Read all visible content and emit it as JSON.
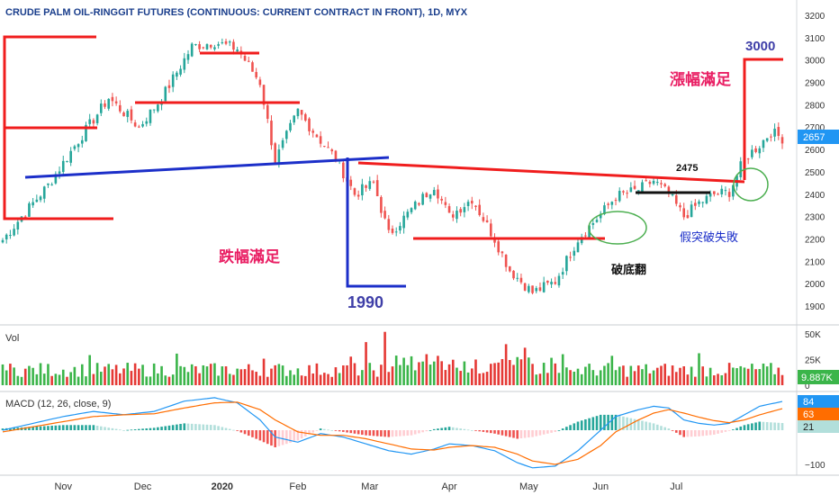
{
  "title": "CRUDE PALM OIL-RINGGIT FUTURES (CONTINUOUS: CURRENT CONTRACT IN FRONT), 1D, MYX",
  "colors": {
    "up": "#26a69a",
    "down": "#ef5350",
    "vol_up": "#3bb54a",
    "vol_down": "#e53935",
    "red_line": "#f01d1d",
    "blue_line": "#1c2fc9",
    "annot_purple": "#3f3fa8",
    "annot_pink": "#e91e63",
    "macd_line": "#2196f3",
    "signal_line": "#ff6d00",
    "price_badge": "#2196f3",
    "green_ellipse": "#4caf50"
  },
  "chart_data": [
    {
      "type": "candlestick",
      "panel": "price",
      "ylim": [
        1830,
        3260
      ],
      "yticks": [
        1900,
        2000,
        2100,
        2200,
        2300,
        2400,
        2500,
        2600,
        2700,
        2800,
        2900,
        3000,
        3100,
        3200
      ],
      "last_price_label": "2657",
      "last_price": 2657,
      "x_axis": {
        "labels": [
          "Nov",
          "Dec",
          "2020",
          "Feb",
          "Mar",
          "Apr",
          "May",
          "Jun",
          "Jul"
        ],
        "positions": [
          16,
          37,
          58,
          78,
          97,
          118,
          139,
          158,
          178
        ]
      },
      "close_path": [
        [
          0,
          2195
        ],
        [
          5,
          2300
        ],
        [
          12,
          2440
        ],
        [
          20,
          2640
        ],
        [
          28,
          2830
        ],
        [
          36,
          2700
        ],
        [
          42,
          2830
        ],
        [
          50,
          3060
        ],
        [
          56,
          3080
        ],
        [
          62,
          3050
        ],
        [
          68,
          2900
        ],
        [
          72,
          2550
        ],
        [
          78,
          2770
        ],
        [
          84,
          2640
        ],
        [
          88,
          2560
        ],
        [
          93,
          2400
        ],
        [
          98,
          2450
        ],
        [
          102,
          2220
        ],
        [
          108,
          2330
        ],
        [
          114,
          2440
        ],
        [
          118,
          2300
        ],
        [
          124,
          2380
        ],
        [
          130,
          2200
        ],
        [
          134,
          2060
        ],
        [
          140,
          1960
        ],
        [
          146,
          2010
        ],
        [
          152,
          2200
        ],
        [
          158,
          2310
        ],
        [
          162,
          2390
        ],
        [
          168,
          2420
        ],
        [
          172,
          2460
        ],
        [
          176,
          2400
        ],
        [
          180,
          2300
        ],
        [
          184,
          2360
        ],
        [
          188,
          2400
        ],
        [
          192,
          2410
        ],
        [
          196,
          2560
        ],
        [
          200,
          2620
        ],
        [
          203,
          2680
        ],
        [
          206,
          2650
        ]
      ],
      "annotations": [
        {
          "text": "跌幅滿足",
          "kind": "label"
        },
        {
          "text": "1990",
          "kind": "level"
        },
        {
          "text": "漲幅滿足",
          "kind": "label"
        },
        {
          "text": "3000",
          "kind": "level"
        },
        {
          "text": "2475",
          "kind": "level"
        },
        {
          "text": "假突破失敗",
          "kind": "label"
        },
        {
          "text": "破底翻",
          "kind": "label"
        }
      ]
    },
    {
      "type": "bar",
      "panel": "volume",
      "label": "Vol",
      "ylim": [
        0,
        55000
      ],
      "yticks_labels": [
        "50K",
        "25K",
        "0"
      ],
      "yticks": [
        50000,
        25000,
        0
      ],
      "last_value_label": "9.887K",
      "last_value": 9887
    },
    {
      "type": "line",
      "panel": "macd",
      "label": "MACD (12, 26, close, 9)",
      "ylim": [
        -130,
        110
      ],
      "yticks": [
        -100
      ],
      "yticks_labels": [
        "−100"
      ],
      "values": {
        "macd": 84,
        "signal": 63,
        "histogram": 21
      },
      "values_labels": {
        "macd": "84",
        "signal": "63",
        "histogram": "21"
      },
      "macd_path": [
        [
          0,
          0
        ],
        [
          8,
          20
        ],
        [
          16,
          40
        ],
        [
          24,
          55
        ],
        [
          32,
          45
        ],
        [
          40,
          55
        ],
        [
          48,
          85
        ],
        [
          56,
          95
        ],
        [
          62,
          80
        ],
        [
          68,
          30
        ],
        [
          72,
          -20
        ],
        [
          78,
          -35
        ],
        [
          84,
          -10
        ],
        [
          90,
          -20
        ],
        [
          96,
          -40
        ],
        [
          102,
          -60
        ],
        [
          108,
          -70
        ],
        [
          114,
          -55
        ],
        [
          118,
          -40
        ],
        [
          124,
          -45
        ],
        [
          130,
          -60
        ],
        [
          136,
          -95
        ],
        [
          140,
          -110
        ],
        [
          146,
          -105
        ],
        [
          152,
          -60
        ],
        [
          158,
          0
        ],
        [
          162,
          40
        ],
        [
          168,
          60
        ],
        [
          172,
          70
        ],
        [
          176,
          65
        ],
        [
          180,
          30
        ],
        [
          184,
          20
        ],
        [
          188,
          15
        ],
        [
          192,
          20
        ],
        [
          196,
          45
        ],
        [
          200,
          70
        ],
        [
          206,
          84
        ]
      ],
      "signal_path": [
        [
          0,
          -5
        ],
        [
          8,
          10
        ],
        [
          16,
          25
        ],
        [
          24,
          40
        ],
        [
          32,
          45
        ],
        [
          40,
          48
        ],
        [
          48,
          65
        ],
        [
          56,
          80
        ],
        [
          62,
          82
        ],
        [
          68,
          60
        ],
        [
          72,
          30
        ],
        [
          78,
          -5
        ],
        [
          84,
          -15
        ],
        [
          90,
          -15
        ],
        [
          96,
          -25
        ],
        [
          102,
          -40
        ],
        [
          108,
          -55
        ],
        [
          114,
          -58
        ],
        [
          118,
          -50
        ],
        [
          124,
          -45
        ],
        [
          130,
          -50
        ],
        [
          136,
          -70
        ],
        [
          140,
          -90
        ],
        [
          146,
          -100
        ],
        [
          152,
          -85
        ],
        [
          158,
          -45
        ],
        [
          162,
          -5
        ],
        [
          168,
          30
        ],
        [
          172,
          50
        ],
        [
          176,
          60
        ],
        [
          180,
          50
        ],
        [
          184,
          38
        ],
        [
          188,
          28
        ],
        [
          192,
          22
        ],
        [
          196,
          30
        ],
        [
          200,
          45
        ],
        [
          206,
          63
        ]
      ]
    }
  ]
}
